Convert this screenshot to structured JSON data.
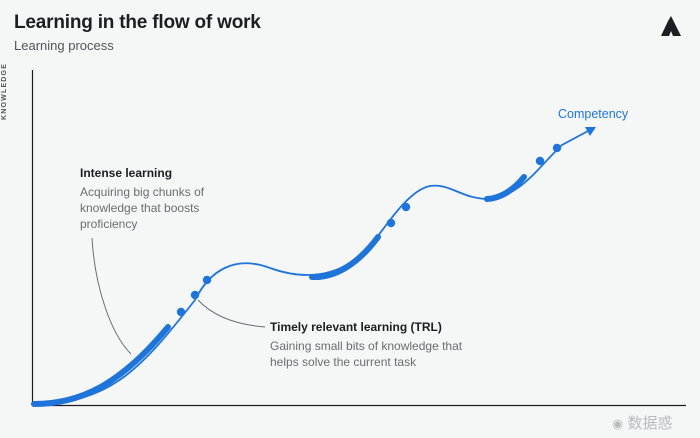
{
  "header": {
    "title": "Learning in the flow of work",
    "subtitle": "Learning process"
  },
  "axes": {
    "y_label": "KNOWLEDGE"
  },
  "annotations": {
    "intense": {
      "title": "Intense learning",
      "line1": "Acquiring big chunks of",
      "line2": "knowledge that boosts",
      "line3": "proficiency"
    },
    "trl": {
      "title": "Timely relevant learning (TRL)",
      "line1": "Gaining small bits of knowledge that",
      "line2": "helps solve the current task"
    }
  },
  "endpoint_label": "Competency",
  "watermark": "数据惑",
  "colors": {
    "curve": "#1f74d9",
    "text_dark": "#1b1f23",
    "text_muted": "#6a6e72",
    "axis": "#1b1f23",
    "background": "#f5f6f6"
  },
  "icons": {
    "logo": "mountain-logo-icon",
    "watermark_symbol": "weibo-icon"
  }
}
